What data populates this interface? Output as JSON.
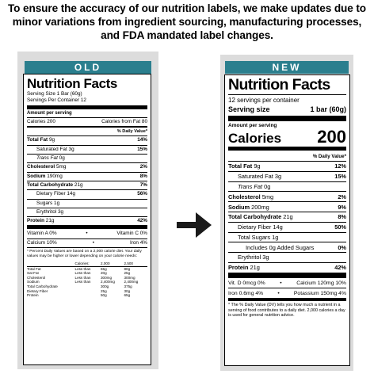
{
  "intro": "To ensure the accuracy of our nutrition labels, we make updates due to minor variations from ingredient sourcing, manufacturing processes, and FDA mandated label changes.",
  "old": {
    "tag": "OLD",
    "title": "Nutrition Facts",
    "serving_size": "Serving Size 1 Bar (60g)",
    "servings": "Servings Per Container 12",
    "amount": "Amount per serving",
    "calories": "Calories 200",
    "calories_fat": "Calories from Fat 80",
    "dv": "% Daily Value*",
    "rows": [
      {
        "label": "Total Fat",
        "amount": "9g",
        "dv": "14%",
        "bold": true,
        "indent": 0
      },
      {
        "label": "Saturated Fat",
        "amount": "3g",
        "dv": "15%",
        "bold": false,
        "indent": 1
      },
      {
        "label": "Trans Fat",
        "amount": "0g",
        "dv": "",
        "bold": false,
        "indent": 1,
        "italic": true
      },
      {
        "label": "Cholesterol",
        "amount": "5mg",
        "dv": "2%",
        "bold": true,
        "indent": 0
      },
      {
        "label": "Sodium",
        "amount": "190mg",
        "dv": "8%",
        "bold": true,
        "indent": 0
      },
      {
        "label": "Total Carbohydrate",
        "amount": "21g",
        "dv": "7%",
        "bold": true,
        "indent": 0
      },
      {
        "label": "Dietary Fiber",
        "amount": "14g",
        "dv": "56%",
        "bold": false,
        "indent": 1
      },
      {
        "label": "Sugars",
        "amount": "1g",
        "dv": "",
        "bold": false,
        "indent": 1
      },
      {
        "label": "Erythritol",
        "amount": "3g",
        "dv": "",
        "bold": false,
        "indent": 1
      },
      {
        "label": "Protein",
        "amount": "21g",
        "dv": "42%",
        "bold": true,
        "indent": 0
      }
    ],
    "vit_a": "Vitamin A 0%",
    "vit_c": "Vitamin C 0%",
    "calcium": "Calcium 10%",
    "iron": "Iron 4%",
    "bullet": "•",
    "footnote": "* Percent Daily Values are based on a 2,000 calorie diet. Your daily values may be higher or lower depending on your calorie needs:",
    "table": {
      "header": [
        "",
        "Calories:",
        "2,000",
        "2,500"
      ],
      "rows": [
        [
          "Total Fat",
          "Less than",
          "65g",
          "80g"
        ],
        [
          "Sat Fat",
          "Less than",
          "20g",
          "25g"
        ],
        [
          "Cholesterol",
          "Less than",
          "300mg",
          "300mg"
        ],
        [
          "Sodium",
          "Less than",
          "2,400mg",
          "2,400mg"
        ],
        [
          "Total Carbohydrate",
          "",
          "300g",
          "375g"
        ],
        [
          "Dietary Fiber",
          "",
          "25g",
          "30g"
        ],
        [
          "Protein",
          "",
          "50g",
          "65g"
        ]
      ]
    }
  },
  "new": {
    "tag": "NEW",
    "title": "Nutrition Facts",
    "servings": "12 servings per container",
    "serving_label": "Serving size",
    "serving_value": "1 bar (60g)",
    "amount": "Amount per serving",
    "calories_label": "Calories",
    "calories_value": "200",
    "dv": "% Daily Value*",
    "rows": [
      {
        "label": "Total Fat",
        "amount": "9g",
        "dv": "12%",
        "bold": true,
        "indent": 0
      },
      {
        "label": "Saturated Fat",
        "amount": "3g",
        "dv": "15%",
        "bold": false,
        "indent": 1
      },
      {
        "label": "Trans Fat",
        "amount": "0g",
        "dv": "",
        "bold": false,
        "indent": 1,
        "italic": true
      },
      {
        "label": "Cholesterol",
        "amount": "5mg",
        "dv": "2%",
        "bold": true,
        "indent": 0
      },
      {
        "label": "Sodium",
        "amount": "200mg",
        "dv": "9%",
        "bold": true,
        "indent": 0
      },
      {
        "label": "Total Carbohydrate",
        "amount": "21g",
        "dv": "8%",
        "bold": true,
        "indent": 0
      },
      {
        "label": "Dietary Fiber",
        "amount": "14g",
        "dv": "50%",
        "bold": false,
        "indent": 1
      },
      {
        "label": "Total Sugars",
        "amount": "1g",
        "dv": "",
        "bold": false,
        "indent": 1
      },
      {
        "label": "Includes 0g Added Sugars",
        "amount": "",
        "dv": "0%",
        "bold": false,
        "indent": 2
      },
      {
        "label": "Erythritol",
        "amount": "3g",
        "dv": "",
        "bold": false,
        "indent": 1
      },
      {
        "label": "Protein",
        "amount": "21g",
        "dv": "42%",
        "bold": true,
        "indent": 0
      }
    ],
    "vit_d": "Vit. D 0mcg 0%",
    "calcium": "Calcium 120mg 10%",
    "iron": "Iron 0.6mg 4%",
    "potassium": "Potassium 150mg 4%",
    "bullet": "•",
    "footnote": "* The % Daily Value (DV) tells you how much a nutrient in a serving of food contributes to a daily diet. 2,000 calories a day is used for general nutrition advice."
  }
}
